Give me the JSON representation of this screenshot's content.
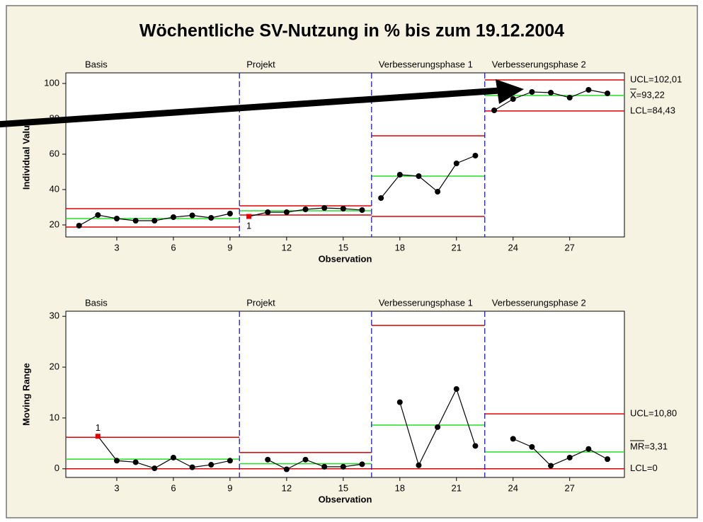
{
  "chart_data": [
    {
      "type": "line",
      "title": "Wöchentliche SV-Nutzung in % bis zum 19.12.2004",
      "x_label": "Observation",
      "y_label": "Individual Value",
      "x": [
        1,
        2,
        3,
        4,
        5,
        6,
        7,
        8,
        9,
        10,
        11,
        12,
        13,
        14,
        15,
        16,
        17,
        18,
        19,
        20,
        21,
        22,
        23,
        24,
        25,
        26,
        27,
        28,
        29
      ],
      "values": [
        19.6,
        25.6,
        23.6,
        22.4,
        22.4,
        24.4,
        25.4,
        24,
        26.4,
        24.8,
        27.2,
        27.2,
        28.8,
        29.6,
        29.2,
        28.4,
        35.2,
        48.4,
        47.6,
        38.8,
        54.8,
        59.2,
        84.8,
        91.2,
        95.2,
        94.8,
        92,
        96.4,
        94.4
      ],
      "color": "#000000",
      "phases": [
        "Basis",
        "Projekt",
        "Verbesserungsphase 1",
        "Verbesserungsphase 2"
      ],
      "phase_boundaries": [
        9.5,
        16.5,
        22.5
      ],
      "ucl": [
        29.2,
        30.8,
        70.4,
        102.01
      ],
      "cl": [
        23.6,
        28,
        47.6,
        93.22
      ],
      "lcl": [
        18.8,
        25.6,
        24.8,
        84.43
      ],
      "limit_labels": [
        "UCL=102,01",
        "X=93,22",
        "LCL=84,43"
      ],
      "annotations": [
        {
          "x": 10,
          "text": "1"
        }
      ],
      "xlim": [
        0.3,
        29.9
      ],
      "ylim": [
        13.2,
        106
      ],
      "xticks": [
        3,
        6,
        9,
        12,
        15,
        18,
        21,
        24,
        27
      ],
      "yticks": [
        20,
        40,
        60,
        80,
        100
      ]
    },
    {
      "type": "line",
      "x_label": "Observation",
      "y_label": "Moving Range",
      "x": [
        1,
        2,
        3,
        4,
        5,
        6,
        7,
        8,
        9,
        10,
        11,
        12,
        13,
        14,
        15,
        16,
        17,
        18,
        19,
        20,
        21,
        22,
        23,
        24,
        25,
        26,
        27,
        28,
        29
      ],
      "values": [
        null,
        6.4,
        1.6,
        1.3,
        0.1,
        2.2,
        0.3,
        0.8,
        1.6,
        null,
        1.8,
        -0.1,
        1.8,
        0.4,
        0.4,
        0.9,
        null,
        13.1,
        0.7,
        8.2,
        15.7,
        4.5,
        null,
        5.9,
        4.3,
        0.6,
        2.2,
        3.9,
        1.9
      ],
      "color": "#000000",
      "phases": [
        "Basis",
        "Projekt",
        "Verbesserungsphase 1",
        "Verbesserungsphase 2"
      ],
      "phase_boundaries": [
        9.5,
        16.5,
        22.5
      ],
      "ucl": [
        6.2,
        3.2,
        28.2,
        10.8
      ],
      "cl": [
        1.9,
        1,
        8.6,
        3.31
      ],
      "lcl": [
        0,
        0,
        0,
        0
      ],
      "limit_labels": [
        "UCL=10,80",
        "MR=3,31",
        "LCL=0"
      ],
      "annotations": [
        {
          "x": 2,
          "text": "1"
        }
      ],
      "xlim": [
        0.3,
        29.9
      ],
      "ylim": [
        -1.7,
        31
      ],
      "xticks": [
        3,
        6,
        9,
        12,
        15,
        18,
        21,
        24,
        27
      ],
      "yticks": [
        0,
        10,
        20,
        30
      ]
    }
  ]
}
